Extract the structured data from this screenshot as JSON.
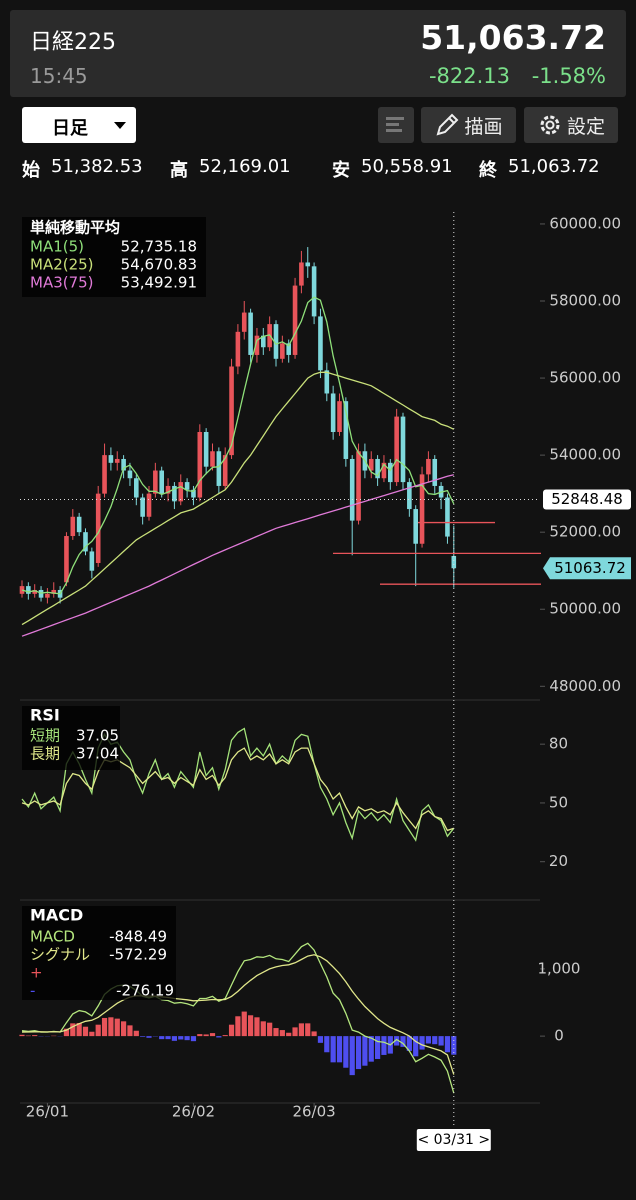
{
  "header": {
    "name": "日経225",
    "time": "15:45",
    "price": "51,063.72",
    "change": "-822.13",
    "change_pct": "-1.58%"
  },
  "toolbar": {
    "period": "日足",
    "draw": "描画",
    "settings": "設定"
  },
  "ohlc": [
    {
      "label": "始",
      "value": "51,382.53"
    },
    {
      "label": "高",
      "value": "52,169.01"
    },
    {
      "label": "安",
      "value": "50,558.91"
    },
    {
      "label": "終",
      "value": "51,063.72"
    }
  ],
  "chart_data": [
    {
      "type": "candlestick",
      "title": "単純移動平均",
      "up_color": "#e8545a",
      "down_color": "#7fd8dc",
      "candles": [
        [
          50400,
          50750,
          50300,
          50600
        ],
        [
          50600,
          50700,
          50250,
          50400
        ],
        [
          50400,
          50650,
          50300,
          50500
        ],
        [
          50500,
          50600,
          50200,
          50300
        ],
        [
          50300,
          50550,
          50150,
          50400
        ],
        [
          50400,
          50700,
          50300,
          50500
        ],
        [
          50500,
          50600,
          50150,
          50300
        ],
        [
          50700,
          52000,
          50600,
          51900
        ],
        [
          51900,
          52600,
          51800,
          52400
        ],
        [
          52400,
          52500,
          51900,
          52000
        ],
        [
          52000,
          52100,
          51400,
          51500
        ],
        [
          51500,
          51600,
          50800,
          51000
        ],
        [
          51200,
          53200,
          51100,
          53000
        ],
        [
          53000,
          54300,
          52900,
          54000
        ],
        [
          54000,
          54200,
          53600,
          53800
        ],
        [
          53800,
          54100,
          53600,
          53900
        ],
        [
          53900,
          54000,
          53400,
          53600
        ],
        [
          53600,
          53800,
          53200,
          53400
        ],
        [
          53400,
          53500,
          52700,
          52900
        ],
        [
          52900,
          53000,
          52200,
          52400
        ],
        [
          52400,
          53200,
          52300,
          53000
        ],
        [
          53000,
          53800,
          52900,
          53600
        ],
        [
          53600,
          53700,
          52900,
          53000
        ],
        [
          53000,
          53400,
          52800,
          53200
        ],
        [
          53200,
          53300,
          52600,
          52800
        ],
        [
          52800,
          53500,
          52700,
          53300
        ],
        [
          53300,
          53400,
          52900,
          53100
        ],
        [
          53100,
          53200,
          52700,
          52900
        ],
        [
          52900,
          54800,
          52800,
          54600
        ],
        [
          54600,
          54700,
          53500,
          53700
        ],
        [
          53700,
          54300,
          53600,
          54100
        ],
        [
          54100,
          54200,
          53000,
          53200
        ],
        [
          53200,
          54200,
          53100,
          54000
        ],
        [
          54000,
          56500,
          53900,
          56300
        ],
        [
          56300,
          57400,
          56100,
          57200
        ],
        [
          57200,
          58000,
          57000,
          57700
        ],
        [
          57700,
          57800,
          56400,
          56600
        ],
        [
          56600,
          57300,
          56400,
          57100
        ],
        [
          57100,
          57300,
          56600,
          56800
        ],
        [
          56800,
          57600,
          56700,
          57400
        ],
        [
          57400,
          57500,
          56300,
          56500
        ],
        [
          56500,
          57100,
          56400,
          56900
        ],
        [
          56900,
          57000,
          56400,
          56600
        ],
        [
          56600,
          58600,
          56500,
          58400
        ],
        [
          58400,
          59300,
          58200,
          59000
        ],
        [
          59000,
          59400,
          58600,
          58900
        ],
        [
          58900,
          59000,
          57400,
          57600
        ],
        [
          57600,
          57800,
          56000,
          56200
        ],
        [
          56200,
          56400,
          55400,
          55600
        ],
        [
          55600,
          55800,
          54400,
          54600
        ],
        [
          54600,
          55600,
          54500,
          55400
        ],
        [
          55400,
          55500,
          53700,
          53900
        ],
        [
          53900,
          54000,
          51400,
          52300
        ],
        [
          52300,
          54300,
          52200,
          54100
        ],
        [
          54100,
          54300,
          53400,
          53600
        ],
        [
          53600,
          54100,
          53400,
          53900
        ],
        [
          53900,
          54000,
          53200,
          53400
        ],
        [
          53400,
          54000,
          53300,
          53800
        ],
        [
          53800,
          53900,
          53100,
          53300
        ],
        [
          53300,
          55200,
          53200,
          55000
        ],
        [
          55000,
          55100,
          53100,
          53300
        ],
        [
          53300,
          53400,
          52400,
          52600
        ],
        [
          52600,
          52700,
          50600,
          51700
        ],
        [
          51700,
          53700,
          51600,
          53500
        ],
        [
          53500,
          54100,
          53300,
          53900
        ],
        [
          53900,
          54000,
          53000,
          53200
        ],
        [
          53200,
          53300,
          52600,
          52900
        ],
        [
          52900,
          53000,
          51700,
          51885.85
        ],
        [
          51382.53,
          52169.01,
          50558.91,
          51063.72
        ]
      ],
      "series": [
        {
          "name": "MA1(5)",
          "color": "#8fe07a",
          "value_label": "52,735.18",
          "values": [
            50500,
            50450,
            50480,
            50420,
            50440,
            50420,
            50400,
            50680,
            51100,
            51420,
            51620,
            51760,
            51980,
            52300,
            52660,
            53140,
            53660,
            53740,
            53520,
            53240,
            53060,
            53060,
            52980,
            53040,
            53120,
            53180,
            53080,
            53060,
            53340,
            53520,
            53680,
            53700,
            53920,
            54260,
            54960,
            55680,
            56360,
            56980,
            57080,
            57120,
            56880,
            56940,
            56840,
            57160,
            57480,
            57960,
            58100,
            58020,
            57460,
            56580,
            55880,
            55140,
            54360,
            54060,
            53860,
            53560,
            53460,
            53760,
            53600,
            53880,
            53760,
            53600,
            53180,
            53220,
            53000,
            52980,
            53040,
            53080,
            52735.18
          ]
        },
        {
          "name": "MA2(25)",
          "color": "#c9e07a",
          "value_label": "54,670.83",
          "values": [
            49600,
            49700,
            49800,
            49900,
            50000,
            50100,
            50200,
            50300,
            50400,
            50500,
            50600,
            50750,
            50900,
            51050,
            51200,
            51350,
            51500,
            51650,
            51800,
            51900,
            52000,
            52100,
            52200,
            52300,
            52400,
            52500,
            52550,
            52600,
            52700,
            52800,
            52900,
            53000,
            53100,
            53300,
            53550,
            53800,
            54000,
            54250,
            54500,
            54750,
            55000,
            55200,
            55400,
            55600,
            55800,
            56000,
            56100,
            56150,
            56150,
            56100,
            56050,
            56000,
            55950,
            55900,
            55850,
            55800,
            55700,
            55600,
            55500,
            55400,
            55300,
            55200,
            55100,
            55000,
            54950,
            54900,
            54800,
            54750,
            54670.83
          ]
        },
        {
          "name": "MA3(75)",
          "color": "#e07ad8",
          "value_label": "53,492.91",
          "values": [
            49300,
            49360,
            49420,
            49480,
            49540,
            49600,
            49660,
            49720,
            49780,
            49840,
            49900,
            49970,
            50040,
            50110,
            50180,
            50250,
            50320,
            50390,
            50460,
            50530,
            50600,
            50680,
            50760,
            50840,
            50920,
            51000,
            51080,
            51160,
            51240,
            51320,
            51400,
            51470,
            51540,
            51610,
            51680,
            51750,
            51820,
            51890,
            51960,
            52030,
            52100,
            52150,
            52200,
            52250,
            52300,
            52350,
            52400,
            52450,
            52500,
            52550,
            52600,
            52650,
            52700,
            52750,
            52800,
            52850,
            52900,
            52950,
            53000,
            53050,
            53100,
            53150,
            53200,
            53250,
            53300,
            53350,
            53400,
            53450,
            53492.91
          ]
        }
      ],
      "ylim": [
        47800,
        60310
      ],
      "yticks": [
        {
          "value": 48000,
          "label": "48000.00"
        },
        {
          "value": 50000,
          "label": "50000.00"
        },
        {
          "value": 52000,
          "label": "52000.00"
        },
        {
          "value": 54000,
          "label": "54000.00"
        },
        {
          "value": 56000,
          "label": "56000.00"
        },
        {
          "value": 58000,
          "label": "58000.00"
        },
        {
          "value": 60000,
          "label": "60000.00"
        }
      ],
      "drawn_lines": [
        52250,
        51450,
        50650
      ],
      "drawn_line_color": "#e8545a",
      "crosshair_price": 52848.48,
      "last_price": 51063.72
    },
    {
      "type": "line",
      "title": "RSI",
      "ylim": [
        3,
        100
      ],
      "yticks": [
        20,
        50,
        80
      ],
      "series": [
        {
          "name": "短期",
          "color": "#a4e37a",
          "value_label": "37.05",
          "values": [
            52,
            48,
            55,
            47,
            50,
            53,
            46,
            70,
            76,
            70,
            62,
            55,
            78,
            85,
            80,
            81,
            76,
            72,
            62,
            55,
            65,
            72,
            62,
            65,
            58,
            66,
            62,
            58,
            76,
            64,
            68,
            57,
            67,
            82,
            86,
            88,
            74,
            78,
            74,
            80,
            70,
            74,
            71,
            82,
            85,
            84,
            70,
            58,
            52,
            44,
            50,
            40,
            32,
            46,
            42,
            45,
            41,
            44,
            40,
            52,
            41,
            36,
            31,
            46,
            49,
            43,
            41,
            33,
            37.05
          ]
        },
        {
          "name": "長期",
          "color": "#dfe88a",
          "value_label": "37.04",
          "values": [
            50,
            49,
            51,
            49,
            50,
            51,
            49,
            60,
            65,
            64,
            60,
            57,
            66,
            72,
            71,
            72,
            70,
            68,
            64,
            60,
            63,
            66,
            62,
            63,
            60,
            63,
            61,
            59,
            67,
            62,
            64,
            59,
            63,
            72,
            76,
            78,
            72,
            74,
            72,
            75,
            70,
            72,
            70,
            76,
            78,
            78,
            70,
            62,
            58,
            52,
            55,
            48,
            42,
            48,
            46,
            47,
            45,
            46,
            44,
            50,
            45,
            41,
            37,
            44,
            46,
            43,
            42,
            36,
            37.04
          ]
        }
      ]
    },
    {
      "type": "macd",
      "title": "MACD",
      "ylim": [
        -950,
        1950
      ],
      "yticks": [
        0,
        {
          "value": 1000,
          "label": "1,000"
        }
      ],
      "series": [
        {
          "name": "MACD",
          "color": "#b4e67e",
          "value_label": "-848.49",
          "values": [
            80,
            70,
            80,
            60,
            60,
            70,
            60,
            200,
            330,
            380,
            360,
            300,
            450,
            620,
            700,
            750,
            760,
            740,
            680,
            590,
            570,
            590,
            540,
            530,
            490,
            500,
            480,
            450,
            560,
            560,
            590,
            520,
            560,
            760,
            960,
            1120,
            1140,
            1180,
            1170,
            1200,
            1150,
            1140,
            1110,
            1220,
            1330,
            1380,
            1280,
            1080,
            880,
            640,
            540,
            340,
            90,
            60,
            0,
            -30,
            -80,
            -90,
            -130,
            -50,
            -110,
            -220,
            -380,
            -330,
            -270,
            -310,
            -360,
            -520,
            -848.49
          ]
        },
        {
          "name": "シグナル",
          "color": "#e0e68a",
          "value_label": "-572.29",
          "values": [
            60,
            62,
            65,
            64,
            63,
            64,
            63,
            90,
            140,
            185,
            220,
            235,
            280,
            350,
            420,
            490,
            540,
            580,
            600,
            600,
            595,
            595,
            585,
            575,
            560,
            550,
            540,
            525,
            530,
            535,
            545,
            540,
            545,
            590,
            665,
            755,
            830,
            900,
            950,
            1000,
            1030,
            1050,
            1060,
            1090,
            1140,
            1190,
            1210,
            1180,
            1120,
            1030,
            930,
            810,
            670,
            550,
            440,
            350,
            260,
            190,
            130,
            90,
            50,
            0,
            -80,
            -130,
            -160,
            -190,
            -220,
            -280,
            -572.29
          ]
        }
      ],
      "histogram": {
        "positive_name": "+",
        "negative_name": "-",
        "positive_color": "#e8545a",
        "negative_color": "#4e4ef0",
        "value_label": "-276.19",
        "values": [
          20,
          8,
          15,
          -4,
          -3,
          6,
          -3,
          110,
          190,
          195,
          140,
          65,
          170,
          270,
          280,
          260,
          220,
          160,
          80,
          -10,
          -25,
          -5,
          -45,
          -45,
          -70,
          -50,
          -60,
          -75,
          30,
          25,
          45,
          -20,
          15,
          170,
          295,
          365,
          310,
          280,
          220,
          200,
          120,
          90,
          50,
          130,
          190,
          190,
          70,
          -100,
          -240,
          -390,
          -390,
          -470,
          -580,
          -490,
          -440,
          -380,
          -340,
          -280,
          -260,
          -140,
          -160,
          -220,
          -300,
          -200,
          -110,
          -120,
          -140,
          -240,
          -276.19
        ]
      },
      "x_labels": [
        {
          "value": 4,
          "label": "26/01"
        },
        {
          "value": 27,
          "label": "26/02"
        },
        {
          "value": 46,
          "label": "26/03"
        }
      ],
      "crosshair_date": "< 03/31 >"
    }
  ]
}
